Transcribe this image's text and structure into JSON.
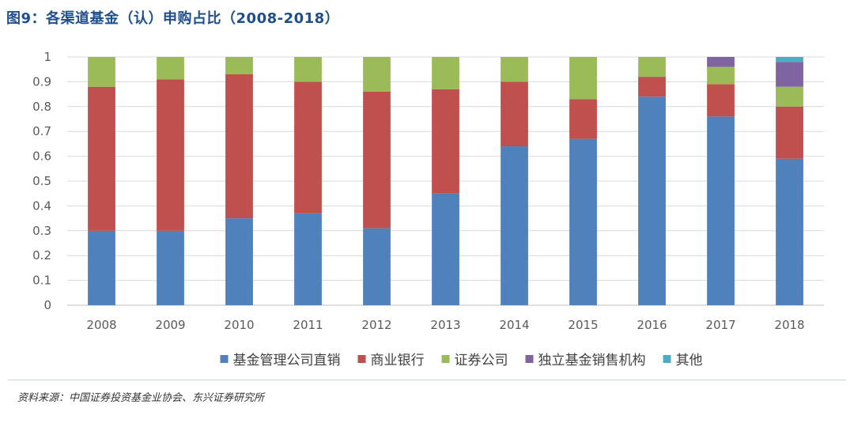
{
  "title": "图9：各渠道基金（认）申购占比（2008-2018）",
  "source": "资料来源：中国证券投资基金业协会、东兴证券研究所",
  "chart_data": {
    "type": "bar",
    "stacked": true,
    "categories": [
      "2008",
      "2009",
      "2010",
      "2011",
      "2012",
      "2013",
      "2014",
      "2015",
      "2016",
      "2017",
      "2018"
    ],
    "ylim": [
      0,
      1
    ],
    "yticks": [
      "0",
      "0.1",
      "0.2",
      "0.3",
      "0.4",
      "0.5",
      "0.6",
      "0.7",
      "0.8",
      "0.9",
      "1"
    ],
    "grid": true,
    "legend_position": "bottom",
    "series": [
      {
        "name": "基金管理公司直销",
        "color": "#4f81bd",
        "values": [
          0.3,
          0.3,
          0.35,
          0.37,
          0.31,
          0.45,
          0.64,
          0.67,
          0.84,
          0.76,
          0.59
        ]
      },
      {
        "name": "商业银行",
        "color": "#c0504d",
        "values": [
          0.58,
          0.61,
          0.58,
          0.53,
          0.55,
          0.42,
          0.26,
          0.16,
          0.08,
          0.13,
          0.21
        ]
      },
      {
        "name": "证券公司",
        "color": "#9bbb59",
        "values": [
          0.12,
          0.09,
          0.07,
          0.1,
          0.14,
          0.13,
          0.1,
          0.17,
          0.08,
          0.07,
          0.08
        ]
      },
      {
        "name": "独立基金销售机构",
        "color": "#8064a2",
        "values": [
          0,
          0,
          0,
          0,
          0,
          0,
          0,
          0,
          0,
          0.04,
          0.1
        ]
      },
      {
        "name": "其他",
        "color": "#4bacc6",
        "values": [
          0,
          0,
          0,
          0,
          0,
          0,
          0,
          0,
          0,
          0,
          0.02
        ]
      }
    ]
  }
}
